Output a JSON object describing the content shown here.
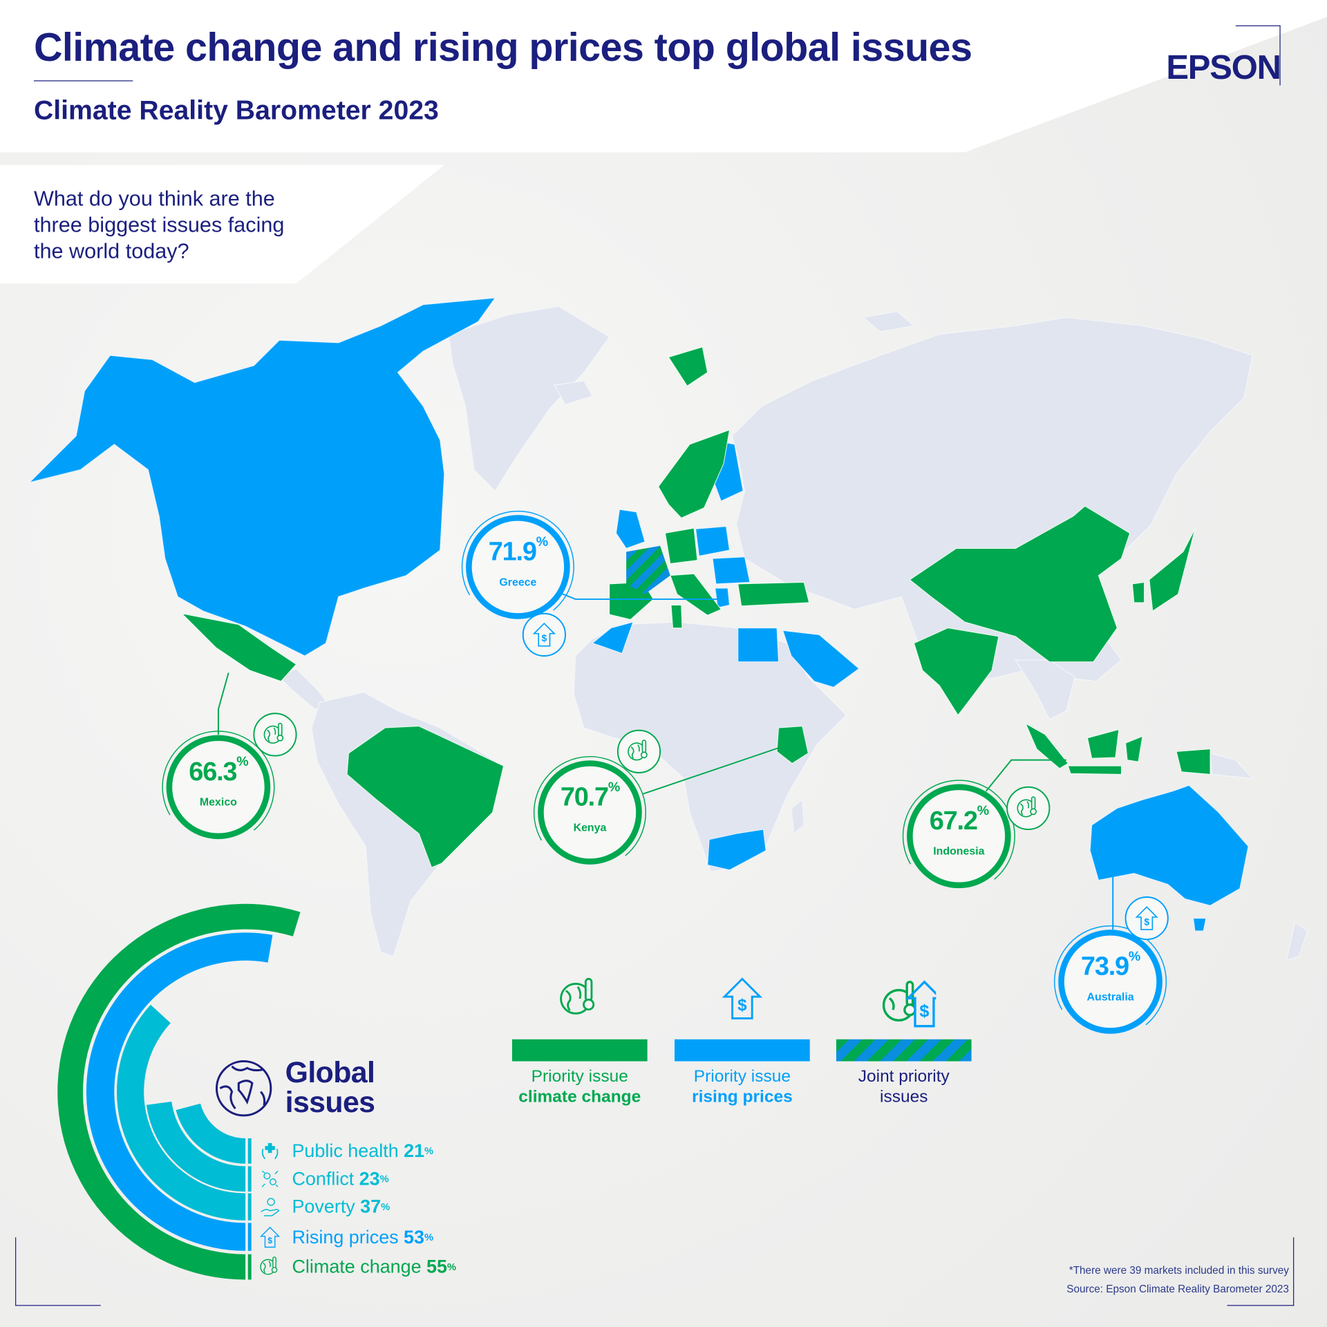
{
  "header": {
    "title": "Climate change and rising prices top global issues",
    "subtitle": "Climate Reality Barometer 2023",
    "logo": "EPSON"
  },
  "question": "What do you think are the three biggest issues facing the world today?",
  "colors": {
    "climate_change": "#00a84f",
    "rising_prices": "#00a0fa",
    "other_issues": "#00bcd4",
    "navy": "#1b1f7e",
    "land": "#e1e5ef"
  },
  "callouts": [
    {
      "country": "Greece",
      "value": "71.9",
      "unit": "%",
      "issue": "rising_prices",
      "icon": "rising-prices-icon"
    },
    {
      "country": "Mexico",
      "value": "66.3",
      "unit": "%",
      "issue": "climate_change",
      "icon": "climate-change-icon"
    },
    {
      "country": "Kenya",
      "value": "70.7",
      "unit": "%",
      "issue": "climate_change",
      "icon": "climate-change-icon"
    },
    {
      "country": "Indonesia",
      "value": "67.2",
      "unit": "%",
      "issue": "climate_change",
      "icon": "climate-change-icon"
    },
    {
      "country": "Australia",
      "value": "73.9",
      "unit": "%",
      "issue": "rising_prices",
      "icon": "rising-prices-icon"
    }
  ],
  "legend": [
    {
      "line1": "Priority issue",
      "line2": "climate change",
      "key": "climate_change",
      "icon": "climate-change-icon"
    },
    {
      "line1": "Priority issue",
      "line2": "rising prices",
      "key": "rising_prices",
      "icon": "rising-prices-icon"
    },
    {
      "line1": "Joint priority",
      "line2": "issues",
      "key": "joint",
      "icon": "joint-priority-icon"
    }
  ],
  "global_issues": {
    "title_line1": "Global",
    "title_line2": "issues"
  },
  "chart_data": {
    "type": "bar",
    "subtype": "radial",
    "title": "Global issues",
    "categories": [
      "Public health",
      "Conflict",
      "Poverty",
      "Rising prices",
      "Climate change"
    ],
    "values": [
      21,
      23,
      37,
      53,
      55
    ],
    "unit": "%",
    "icons": [
      "public-health-icon",
      "conflict-icon",
      "poverty-icon",
      "rising-prices-icon",
      "climate-change-icon"
    ],
    "bar_colors": [
      "#00bcd4",
      "#00bcd4",
      "#00bcd4",
      "#00a0fa",
      "#00a84f"
    ]
  },
  "footer": {
    "note": "*There were 39 markets included in this survey",
    "source": "Source: Epson Climate Reality Barometer 2023"
  }
}
